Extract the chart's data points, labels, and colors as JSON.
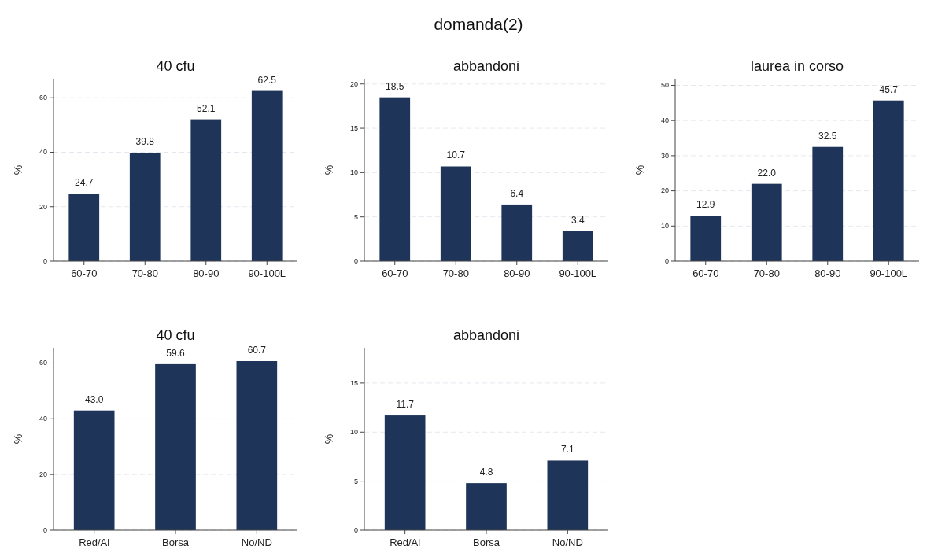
{
  "chart_data": [
    {
      "type": "bar",
      "title": "40 cfu",
      "annotations": [
        "domanda(2)"
      ],
      "ylabel": "%",
      "categories": [
        "60-70",
        "70-80",
        "80-90",
        "90-100L"
      ],
      "values": [
        24.7,
        39.8,
        52.1,
        62.5
      ],
      "color": "#1f3459",
      "ylim": [
        0,
        67
      ],
      "yticks": [
        0,
        20,
        40,
        60
      ],
      "grid": "y",
      "data_labels": true
    },
    {
      "type": "bar",
      "title": "abbandoni",
      "ylabel": "%",
      "categories": [
        "60-70",
        "70-80",
        "80-90",
        "90-100L"
      ],
      "values": [
        18.5,
        10.7,
        6.4,
        3.4
      ],
      "color": "#1f3459",
      "ylim": [
        0,
        20.6
      ],
      "yticks": [
        0,
        5,
        10,
        15,
        20
      ],
      "grid": "y",
      "data_labels": true
    },
    {
      "type": "bar",
      "title": "laurea in corso",
      "ylabel": "%",
      "categories": [
        "60-70",
        "70-80",
        "80-90",
        "90-100L"
      ],
      "values": [
        12.9,
        22.0,
        32.5,
        45.7
      ],
      "value_labels": [
        "12.9",
        "22.0",
        "32.5",
        "45.7"
      ],
      "color": "#1f3459",
      "ylim": [
        0,
        51.9
      ],
      "yticks": [
        0,
        10,
        20,
        30,
        40,
        50
      ],
      "grid": "y"
    },
    {
      "type": "bar",
      "title": "40 cfu",
      "ylabel": "%",
      "categories": [
        "Red/Al",
        "Borsa",
        "No/ND"
      ],
      "values": [
        43.0,
        59.6,
        60.7
      ],
      "value_labels": [
        "43.0",
        "59.6",
        "60.7"
      ],
      "color": "#1f3459",
      "ylim": [
        0,
        65.5
      ],
      "yticks": [
        0,
        20,
        40,
        60
      ],
      "grid": "y"
    },
    {
      "type": "bar",
      "title": "abbandoni",
      "ylabel": "%",
      "categories": [
        "Red/Al",
        "Borsa",
        "No/ND"
      ],
      "values": [
        11.7,
        4.8,
        7.1
      ],
      "color": "#1f3459",
      "ylim": [
        0,
        18.6
      ],
      "yticks": [
        0,
        5,
        10,
        15
      ],
      "grid": "y",
      "data_labels": true
    }
  ]
}
